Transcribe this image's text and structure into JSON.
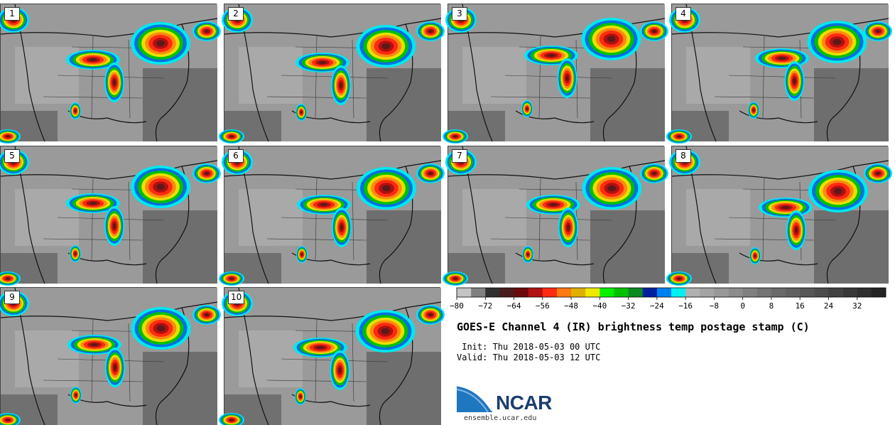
{
  "panels": [
    {
      "label": "1"
    },
    {
      "label": "2"
    },
    {
      "label": "3"
    },
    {
      "label": "4"
    },
    {
      "label": "5"
    },
    {
      "label": "6"
    },
    {
      "label": "7"
    },
    {
      "label": "8"
    },
    {
      "label": "9"
    },
    {
      "label": "10"
    }
  ],
  "colorbar": {
    "colors": [
      "#c4c4c4",
      "#808080",
      "#303030",
      "#4a1c1c",
      "#6b0a0a",
      "#b31212",
      "#ff2a10",
      "#ff7a10",
      "#e0b000",
      "#f0e800",
      "#00f000",
      "#00c000",
      "#0a8a20",
      "#0020a0",
      "#0080f0",
      "#00f0f0",
      "#b0b0b0",
      "#a4a4a4",
      "#989898",
      "#8c8c8c",
      "#808080",
      "#747474",
      "#6a6a6a",
      "#606060",
      "#565656",
      "#4c4c4c",
      "#424242",
      "#383838",
      "#2e2e2e",
      "#242424"
    ],
    "ticks": [
      "−80",
      "−72",
      "−64",
      "−56",
      "−48",
      "−40",
      "−32",
      "−24",
      "−16",
      "−8",
      "0",
      "8",
      "16",
      "24",
      "32"
    ]
  },
  "title": "GOES-E Channel 4 (IR) brightness temp postage stamp (C)",
  "init_text": " Init: Thu 2018-05-03 00 UTC",
  "valid_text": "Valid: Thu 2018-05-03 12 UTC",
  "logo_text": "NCAR",
  "site_text": "ensemble.ucar.edu"
}
